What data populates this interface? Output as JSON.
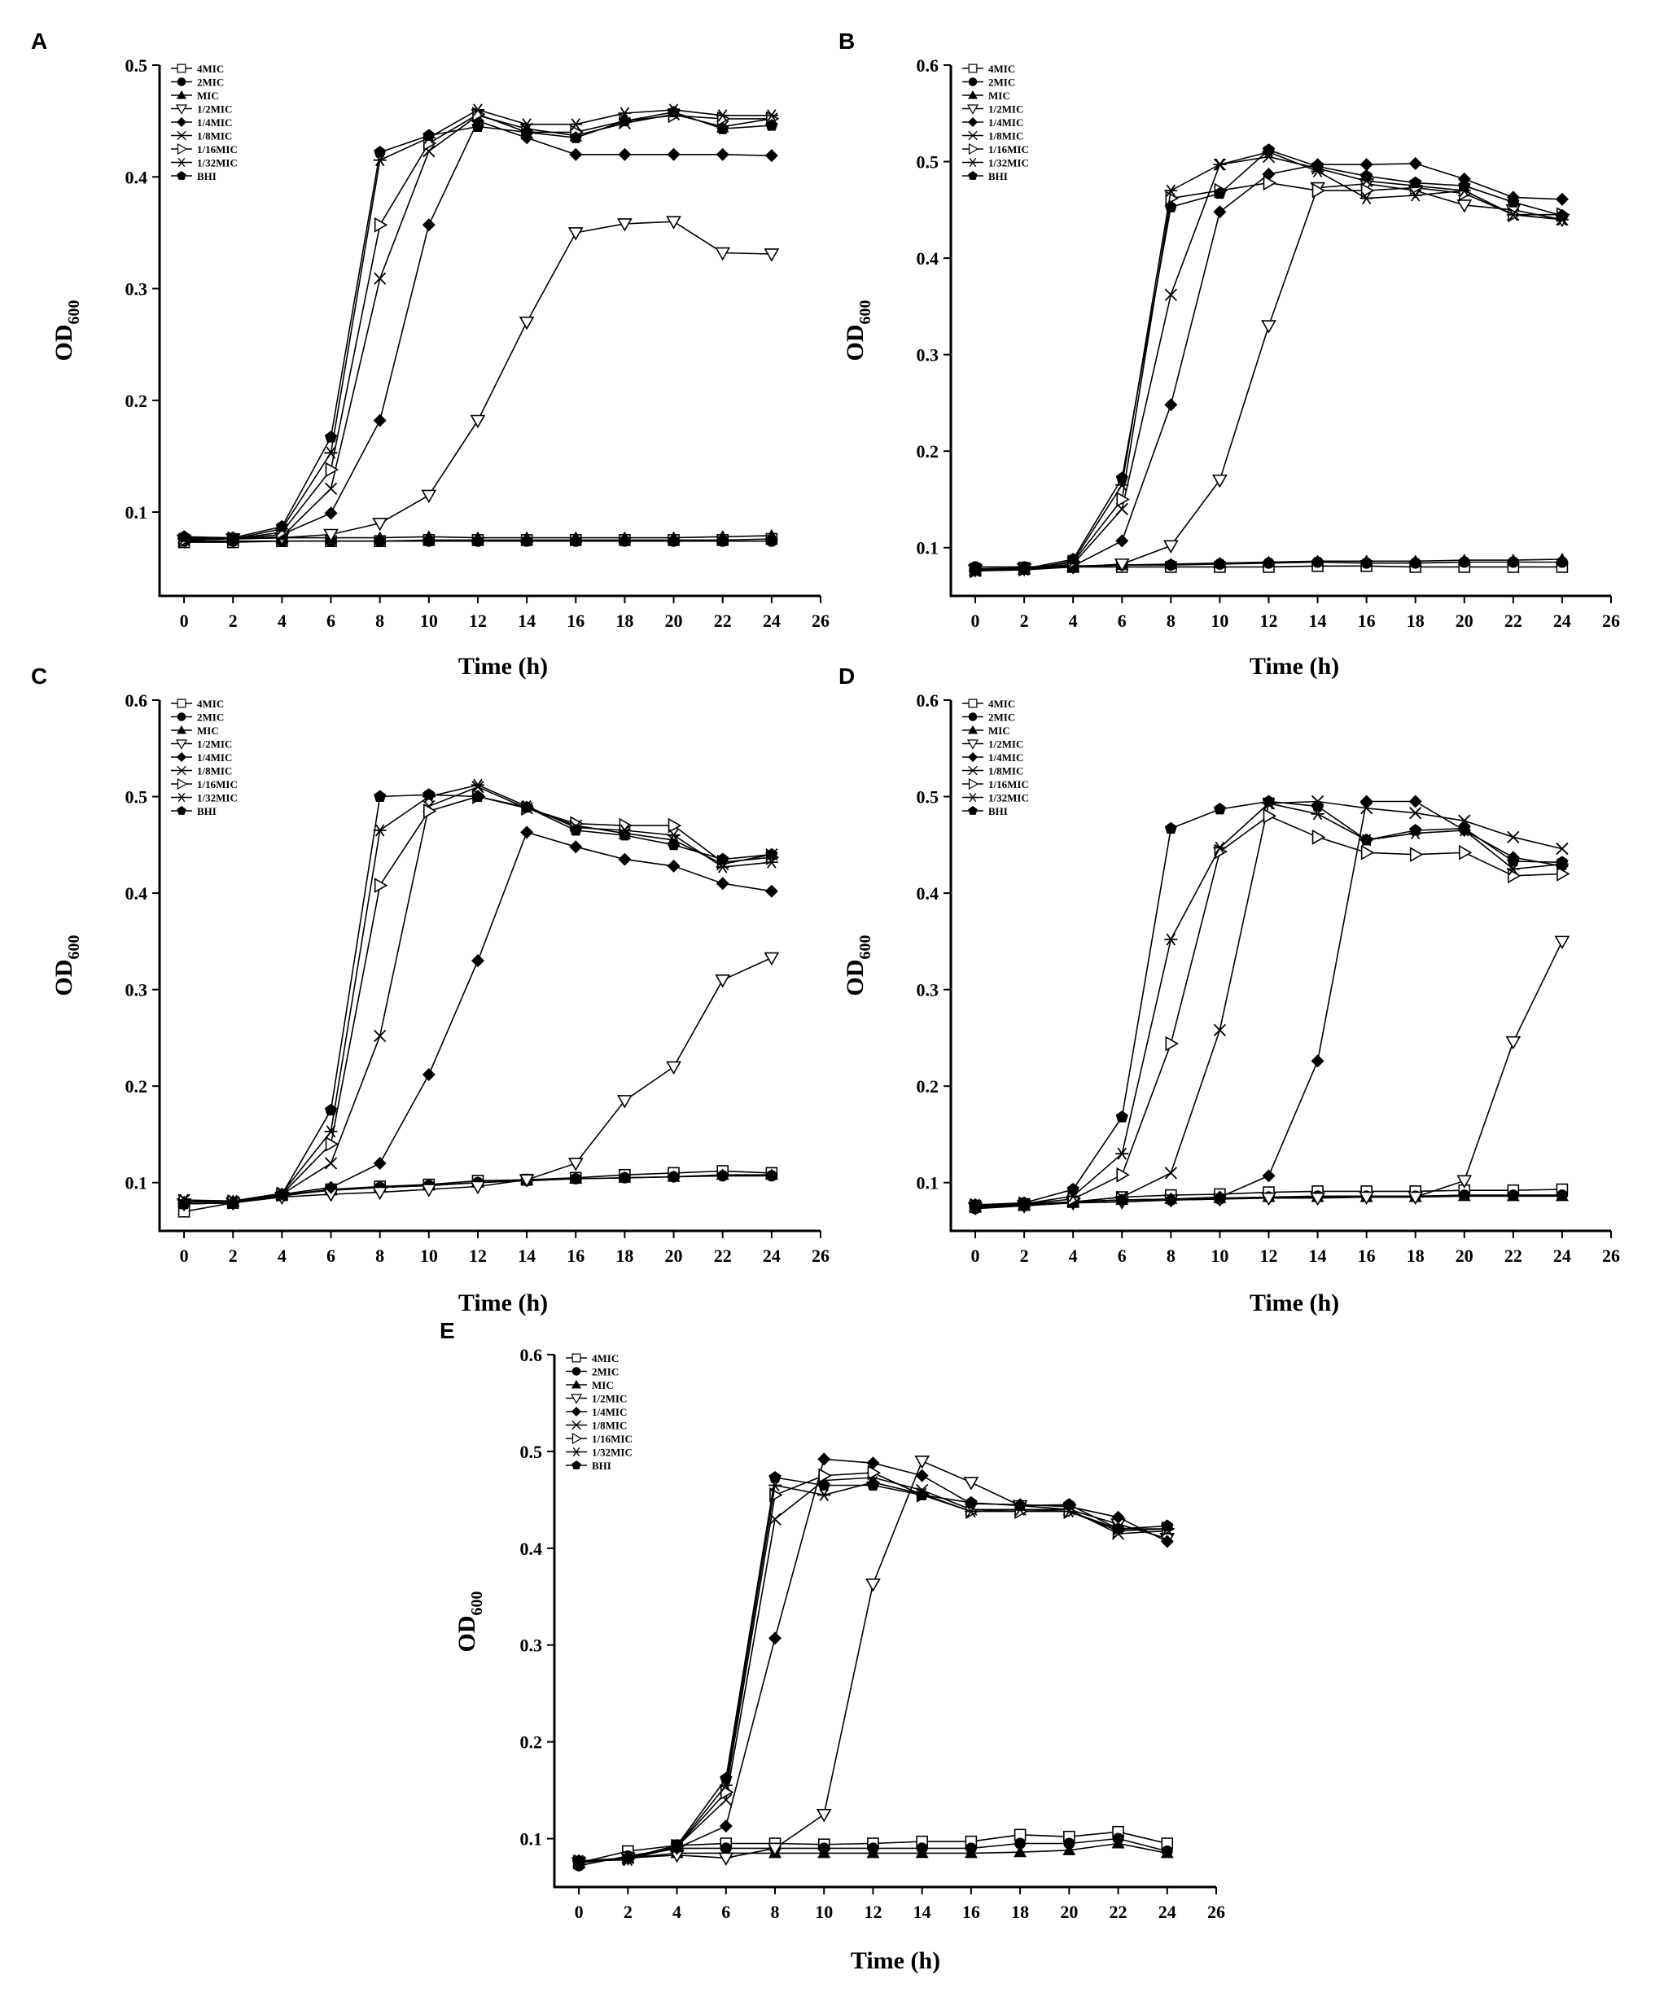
{
  "chart_data": [
    {
      "type": "line",
      "panel": "A",
      "xlabel": "Time (h)",
      "ylabel_main": "OD",
      "ylabel_sub": "600",
      "xlim": [
        -1,
        26
      ],
      "ylim": [
        0.025,
        0.5
      ],
      "xticks": [
        0,
        2,
        4,
        6,
        8,
        10,
        12,
        14,
        16,
        18,
        20,
        22,
        24,
        26
      ],
      "yticks": [
        0.1,
        0.2,
        0.3,
        0.4,
        0.5
      ],
      "ytick_labels": [
        "0.1",
        "0.2",
        "0.3",
        "0.4",
        "0.5"
      ],
      "x": [
        0,
        2,
        4,
        6,
        8,
        10,
        12,
        14,
        16,
        18,
        20,
        22,
        24
      ],
      "series": [
        {
          "name": "4MIC",
          "values": [
            0.073,
            0.073,
            0.074,
            0.074,
            0.074,
            0.075,
            0.075,
            0.075,
            0.075,
            0.075,
            0.075,
            0.075,
            0.076
          ]
        },
        {
          "name": "2MIC",
          "values": [
            0.074,
            0.074,
            0.074,
            0.074,
            0.074,
            0.074,
            0.074,
            0.074,
            0.074,
            0.074,
            0.074,
            0.074,
            0.074
          ]
        },
        {
          "name": "MIC",
          "values": [
            0.076,
            0.076,
            0.077,
            0.077,
            0.077,
            0.078,
            0.077,
            0.077,
            0.077,
            0.077,
            0.077,
            0.078,
            0.079
          ]
        },
        {
          "name": "1/2MIC",
          "values": [
            0.075,
            0.076,
            0.077,
            0.08,
            0.09,
            0.115,
            0.182,
            0.27,
            0.35,
            0.358,
            0.36,
            0.332,
            0.331
          ]
        },
        {
          "name": "1/4MIC",
          "values": [
            0.077,
            0.076,
            0.08,
            0.099,
            0.182,
            0.357,
            0.45,
            0.435,
            0.42,
            0.42,
            0.42,
            0.42,
            0.419
          ]
        },
        {
          "name": "1/8MIC",
          "values": [
            0.075,
            0.076,
            0.078,
            0.121,
            0.309,
            0.423,
            0.455,
            0.443,
            0.437,
            0.448,
            0.456,
            0.445,
            0.452
          ]
        },
        {
          "name": "1/16MIC",
          "values": [
            0.075,
            0.076,
            0.082,
            0.138,
            0.357,
            0.43,
            0.456,
            0.44,
            0.44,
            0.45,
            0.455,
            0.452,
            0.452
          ]
        },
        {
          "name": "1/32MIC",
          "values": [
            0.076,
            0.076,
            0.085,
            0.153,
            0.415,
            0.435,
            0.46,
            0.447,
            0.447,
            0.457,
            0.46,
            0.455,
            0.455
          ]
        },
        {
          "name": "BHI",
          "values": [
            0.078,
            0.077,
            0.087,
            0.167,
            0.422,
            0.437,
            0.445,
            0.44,
            0.435,
            0.45,
            0.458,
            0.443,
            0.446
          ]
        }
      ]
    },
    {
      "type": "line",
      "panel": "B",
      "xlabel": "Time (h)",
      "ylabel_main": "OD",
      "ylabel_sub": "600",
      "xlim": [
        -1,
        26
      ],
      "ylim": [
        0.05,
        0.6
      ],
      "xticks": [
        0,
        2,
        4,
        6,
        8,
        10,
        12,
        14,
        16,
        18,
        20,
        22,
        24,
        26
      ],
      "yticks": [
        0.1,
        0.2,
        0.3,
        0.4,
        0.5,
        0.6
      ],
      "ytick_labels": [
        "0.1",
        "0.2",
        "0.3",
        "0.4",
        "0.5",
        "0.6"
      ],
      "x": [
        0,
        2,
        4,
        6,
        8,
        10,
        12,
        14,
        16,
        18,
        20,
        22,
        24
      ],
      "series": [
        {
          "name": "4MIC",
          "values": [
            0.078,
            0.079,
            0.08,
            0.08,
            0.08,
            0.08,
            0.08,
            0.081,
            0.081,
            0.08,
            0.08,
            0.08,
            0.08
          ]
        },
        {
          "name": "2MIC",
          "values": [
            0.08,
            0.08,
            0.081,
            0.082,
            0.082,
            0.083,
            0.084,
            0.085,
            0.084,
            0.084,
            0.085,
            0.085,
            0.085
          ]
        },
        {
          "name": "MIC",
          "values": [
            0.076,
            0.077,
            0.08,
            0.082,
            0.083,
            0.084,
            0.085,
            0.086,
            0.086,
            0.086,
            0.087,
            0.087,
            0.088
          ]
        },
        {
          "name": "1/2MIC",
          "values": [
            0.077,
            0.078,
            0.08,
            0.083,
            0.102,
            0.17,
            0.33,
            0.473,
            0.477,
            0.47,
            0.455,
            0.45,
            0.44
          ]
        },
        {
          "name": "1/4MIC",
          "values": [
            0.078,
            0.078,
            0.081,
            0.107,
            0.248,
            0.448,
            0.487,
            0.497,
            0.497,
            0.498,
            0.482,
            0.463,
            0.461
          ]
        },
        {
          "name": "1/8MIC",
          "values": [
            0.076,
            0.078,
            0.083,
            0.14,
            0.362,
            0.497,
            0.505,
            0.493,
            0.48,
            0.475,
            0.47,
            0.445,
            0.44
          ]
        },
        {
          "name": "1/16MIC",
          "values": [
            0.076,
            0.078,
            0.085,
            0.15,
            0.462,
            0.47,
            0.478,
            0.47,
            0.47,
            0.473,
            0.467,
            0.445,
            0.445
          ]
        },
        {
          "name": "1/32MIC",
          "values": [
            0.076,
            0.077,
            0.086,
            0.165,
            0.47,
            0.497,
            0.51,
            0.49,
            0.462,
            0.465,
            0.47,
            0.445,
            0.44
          ]
        },
        {
          "name": "BHI",
          "values": [
            0.077,
            0.078,
            0.088,
            0.172,
            0.453,
            0.467,
            0.512,
            0.495,
            0.485,
            0.478,
            0.475,
            0.458,
            0.444
          ]
        }
      ]
    },
    {
      "type": "line",
      "panel": "C",
      "xlabel": "Time (h)",
      "ylabel_main": "OD",
      "ylabel_sub": "600",
      "xlim": [
        -1,
        26
      ],
      "ylim": [
        0.05,
        0.6
      ],
      "xticks": [
        0,
        2,
        4,
        6,
        8,
        10,
        12,
        14,
        16,
        18,
        20,
        22,
        24,
        26
      ],
      "yticks": [
        0.1,
        0.2,
        0.3,
        0.4,
        0.5,
        0.6
      ],
      "ytick_labels": [
        "0.1",
        "0.2",
        "0.3",
        "0.4",
        "0.5",
        "0.6"
      ],
      "x": [
        0,
        2,
        4,
        6,
        8,
        10,
        12,
        14,
        16,
        18,
        20,
        22,
        24
      ],
      "series": [
        {
          "name": "4MIC",
          "values": [
            0.07,
            0.079,
            0.087,
            0.093,
            0.096,
            0.098,
            0.102,
            0.103,
            0.105,
            0.108,
            0.11,
            0.112,
            0.11
          ]
        },
        {
          "name": "2MIC",
          "values": [
            0.078,
            0.079,
            0.086,
            0.093,
            0.095,
            0.097,
            0.1,
            0.102,
            0.104,
            0.105,
            0.106,
            0.107,
            0.107
          ]
        },
        {
          "name": "MIC",
          "values": [
            0.08,
            0.081,
            0.087,
            0.092,
            0.095,
            0.097,
            0.1,
            0.103,
            0.104,
            0.105,
            0.106,
            0.108,
            0.108
          ]
        },
        {
          "name": "1/2MIC",
          "values": [
            0.078,
            0.079,
            0.085,
            0.088,
            0.09,
            0.093,
            0.096,
            0.103,
            0.12,
            0.185,
            0.22,
            0.31,
            0.333
          ]
        },
        {
          "name": "1/4MIC",
          "values": [
            0.078,
            0.079,
            0.088,
            0.095,
            0.12,
            0.212,
            0.33,
            0.463,
            0.448,
            0.435,
            0.428,
            0.41,
            0.402
          ]
        },
        {
          "name": "1/8MIC",
          "values": [
            0.082,
            0.08,
            0.088,
            0.12,
            0.252,
            0.49,
            0.51,
            0.488,
            0.47,
            0.462,
            0.455,
            0.43,
            0.44
          ]
        },
        {
          "name": "1/16MIC",
          "values": [
            0.08,
            0.08,
            0.088,
            0.14,
            0.408,
            0.485,
            0.5,
            0.488,
            0.472,
            0.47,
            0.47,
            0.432,
            0.437
          ]
        },
        {
          "name": "1/32MIC",
          "values": [
            0.082,
            0.081,
            0.089,
            0.153,
            0.465,
            0.5,
            0.512,
            0.49,
            0.468,
            0.465,
            0.46,
            0.427,
            0.432
          ]
        },
        {
          "name": "BHI",
          "values": [
            0.078,
            0.079,
            0.088,
            0.175,
            0.5,
            0.502,
            0.5,
            0.489,
            0.465,
            0.46,
            0.45,
            0.435,
            0.44
          ]
        }
      ]
    },
    {
      "type": "line",
      "panel": "D",
      "xlabel": "Time (h)",
      "ylabel_main": "OD",
      "ylabel_sub": "600",
      "xlim": [
        -1,
        26
      ],
      "ylim": [
        0.05,
        0.6
      ],
      "xticks": [
        0,
        2,
        4,
        6,
        8,
        10,
        12,
        14,
        16,
        18,
        20,
        22,
        24,
        26
      ],
      "yticks": [
        0.1,
        0.2,
        0.3,
        0.4,
        0.5,
        0.6
      ],
      "ytick_labels": [
        "0.1",
        "0.2",
        "0.3",
        "0.4",
        "0.5",
        "0.6"
      ],
      "x": [
        0,
        2,
        4,
        6,
        8,
        10,
        12,
        14,
        16,
        18,
        20,
        22,
        24
      ],
      "series": [
        {
          "name": "4MIC",
          "values": [
            0.075,
            0.077,
            0.08,
            0.085,
            0.087,
            0.088,
            0.09,
            0.091,
            0.091,
            0.091,
            0.092,
            0.092,
            0.093
          ]
        },
        {
          "name": "2MIC",
          "values": [
            0.073,
            0.076,
            0.08,
            0.082,
            0.082,
            0.083,
            0.085,
            0.086,
            0.086,
            0.086,
            0.087,
            0.087,
            0.087
          ]
        },
        {
          "name": "MIC",
          "values": [
            0.074,
            0.076,
            0.08,
            0.082,
            0.083,
            0.084,
            0.085,
            0.085,
            0.085,
            0.085,
            0.086,
            0.086,
            0.086
          ]
        },
        {
          "name": "1/2MIC",
          "values": [
            0.074,
            0.076,
            0.079,
            0.08,
            0.082,
            0.083,
            0.084,
            0.084,
            0.085,
            0.085,
            0.102,
            0.246,
            0.35
          ]
        },
        {
          "name": "1/4MIC",
          "values": [
            0.075,
            0.077,
            0.08,
            0.082,
            0.083,
            0.085,
            0.107,
            0.226,
            0.495,
            0.495,
            0.465,
            0.437,
            0.428
          ]
        },
        {
          "name": "1/8MIC",
          "values": [
            0.076,
            0.078,
            0.08,
            0.085,
            0.11,
            0.258,
            0.493,
            0.495,
            0.488,
            0.483,
            0.475,
            0.458,
            0.446
          ]
        },
        {
          "name": "1/16MIC",
          "values": [
            0.076,
            0.078,
            0.083,
            0.108,
            0.244,
            0.443,
            0.48,
            0.458,
            0.442,
            0.44,
            0.442,
            0.418,
            0.42
          ]
        },
        {
          "name": "1/32MIC",
          "values": [
            0.077,
            0.078,
            0.086,
            0.13,
            0.352,
            0.447,
            0.493,
            0.482,
            0.455,
            0.462,
            0.465,
            0.425,
            0.43
          ]
        },
        {
          "name": "BHI",
          "values": [
            0.077,
            0.079,
            0.093,
            0.168,
            0.467,
            0.487,
            0.495,
            0.49,
            0.455,
            0.465,
            0.467,
            0.433,
            0.432
          ]
        }
      ]
    },
    {
      "type": "line",
      "panel": "E",
      "xlabel": "Time (h)",
      "ylabel_main": "OD",
      "ylabel_sub": "600",
      "xlim": [
        -1,
        26
      ],
      "ylim": [
        0.05,
        0.6
      ],
      "xticks": [
        0,
        2,
        4,
        6,
        8,
        10,
        12,
        14,
        16,
        18,
        20,
        22,
        24,
        26
      ],
      "yticks": [
        0.1,
        0.2,
        0.3,
        0.4,
        0.5,
        0.6
      ],
      "ytick_labels": [
        "0.1",
        "0.2",
        "0.3",
        "0.4",
        "0.5",
        "0.6"
      ],
      "x": [
        0,
        2,
        4,
        6,
        8,
        10,
        12,
        14,
        16,
        18,
        20,
        22,
        24
      ],
      "series": [
        {
          "name": "4MIC",
          "values": [
            0.075,
            0.087,
            0.093,
            0.095,
            0.095,
            0.094,
            0.095,
            0.097,
            0.097,
            0.104,
            0.102,
            0.107,
            0.095
          ]
        },
        {
          "name": "2MIC",
          "values": [
            0.072,
            0.082,
            0.09,
            0.09,
            0.09,
            0.09,
            0.09,
            0.09,
            0.09,
            0.095,
            0.095,
            0.1,
            0.087
          ]
        },
        {
          "name": "MIC",
          "values": [
            0.075,
            0.08,
            0.085,
            0.085,
            0.085,
            0.085,
            0.085,
            0.085,
            0.085,
            0.086,
            0.088,
            0.095,
            0.085
          ]
        },
        {
          "name": "1/2MIC",
          "values": [
            0.075,
            0.08,
            0.083,
            0.08,
            0.09,
            0.125,
            0.363,
            0.49,
            0.468,
            0.444,
            0.44,
            0.425,
            0.41
          ]
        },
        {
          "name": "1/4MIC",
          "values": [
            0.076,
            0.08,
            0.09,
            0.113,
            0.307,
            0.492,
            0.488,
            0.475,
            0.446,
            0.445,
            0.443,
            0.432,
            0.407
          ]
        },
        {
          "name": "1/8MIC",
          "values": [
            0.076,
            0.08,
            0.092,
            0.14,
            0.43,
            0.47,
            0.473,
            0.46,
            0.44,
            0.44,
            0.44,
            0.415,
            0.418
          ]
        },
        {
          "name": "1/16MIC",
          "values": [
            0.076,
            0.08,
            0.092,
            0.148,
            0.455,
            0.475,
            0.478,
            0.455,
            0.438,
            0.438,
            0.438,
            0.418,
            0.42
          ]
        },
        {
          "name": "1/32MIC",
          "values": [
            0.077,
            0.078,
            0.092,
            0.155,
            0.465,
            0.455,
            0.468,
            0.456,
            0.438,
            0.44,
            0.438,
            0.42,
            0.42
          ]
        },
        {
          "name": "BHI",
          "values": [
            0.077,
            0.08,
            0.093,
            0.162,
            0.473,
            0.465,
            0.465,
            0.455,
            0.447,
            0.444,
            0.445,
            0.42,
            0.423
          ]
        }
      ]
    }
  ],
  "legend_entries": [
    "4MIC",
    "2MIC",
    "MIC",
    "1/2MIC",
    "1/4MIC",
    "1/8MIC",
    "1/16MIC",
    "1/32MIC",
    "BHI"
  ],
  "legend_markers": [
    "open-square",
    "filled-circle",
    "filled-triangle-up",
    "open-triangle-down",
    "filled-diamond",
    "x-cross",
    "open-triangle-right",
    "asterisk",
    "filled-pentagon"
  ],
  "colors": {
    "ink": "#000000",
    "background": "#ffffff"
  }
}
